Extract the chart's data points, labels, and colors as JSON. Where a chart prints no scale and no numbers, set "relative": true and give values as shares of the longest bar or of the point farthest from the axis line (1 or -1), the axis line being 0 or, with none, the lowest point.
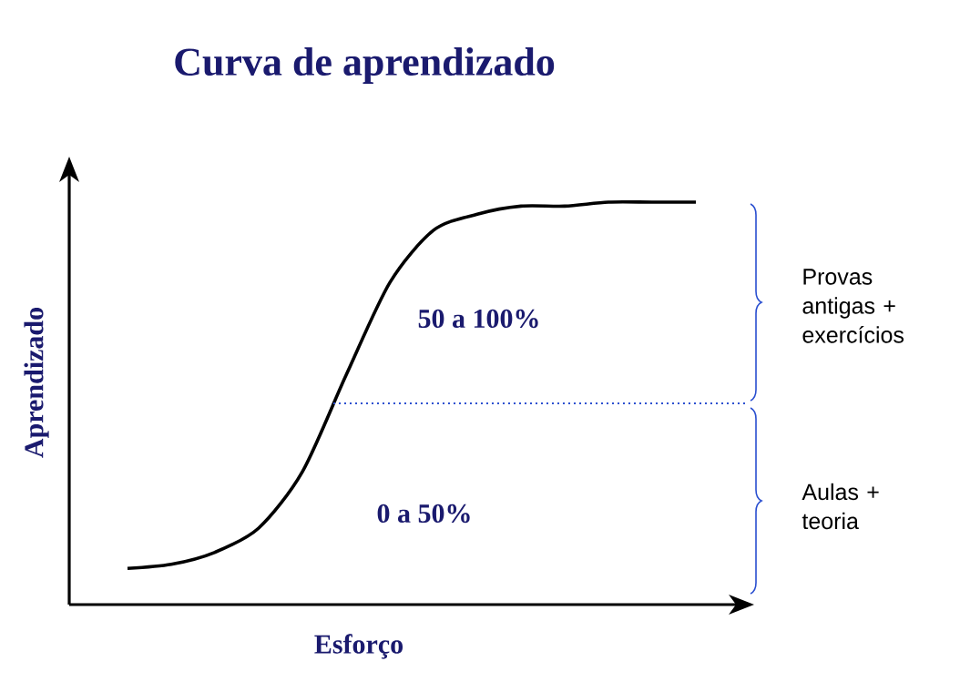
{
  "chart_data": {
    "type": "line",
    "title": "Curva de aprendizado",
    "xlabel": "Esforço",
    "ylabel": "Aprendizado",
    "relative": true,
    "marker": "none",
    "line_style": "solid",
    "categories": [
      null,
      null,
      null,
      null,
      null,
      null,
      null,
      null,
      null,
      null,
      null,
      null,
      null,
      null
    ],
    "series": [
      {
        "color": "#000000",
        "values": [
          0.09,
          0.1,
          0.13,
          0.19,
          0.33,
          0.57,
          0.8,
          0.93,
          0.97,
          0.99,
          0.99,
          1.0,
          1.0,
          1.0
        ]
      }
    ],
    "ref_lines": [
      {
        "axis": "y",
        "value": 0.5,
        "color": "#2a4fd0",
        "line_style": "dotted"
      }
    ],
    "annotations": [
      "50 a 100%",
      "0 a 50%",
      "Provas antigas + exercícios",
      "Aulas + teoria"
    ]
  }
}
